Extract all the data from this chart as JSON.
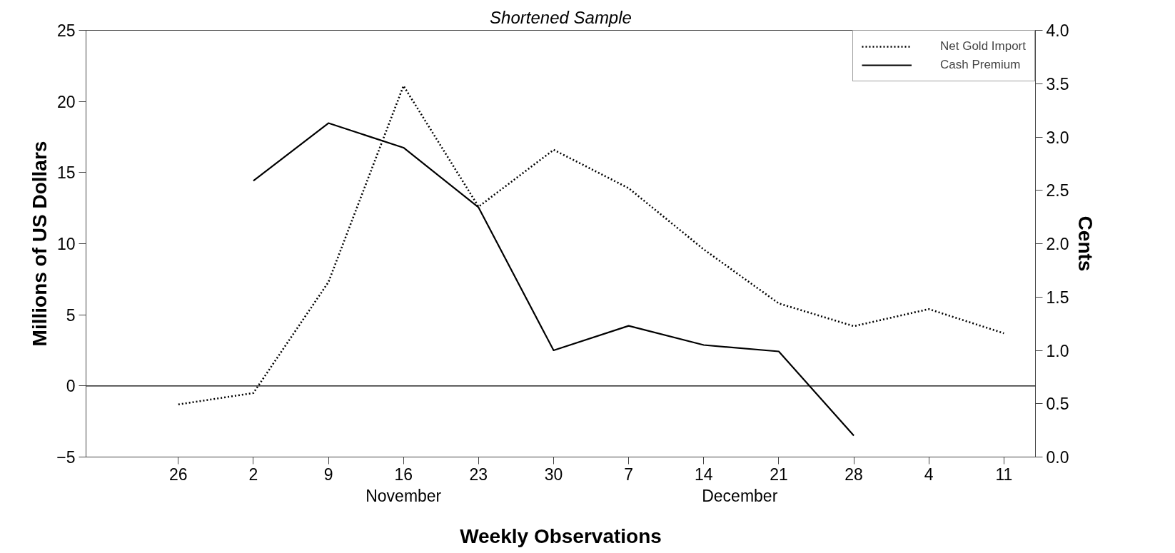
{
  "chart_data": {
    "type": "line",
    "title": "Shortened Sample",
    "xlabel": "Weekly Observations",
    "ylabel": "Millions of US Dollars",
    "y2label": "Cents",
    "categories": [
      "26",
      "2",
      "9",
      "16",
      "23",
      "30",
      "7",
      "14",
      "21",
      "28",
      "4",
      "11"
    ],
    "series": [
      {
        "name": "Net Gold Import",
        "color": "#000000",
        "line_style": "dotted",
        "values": [
          -1.3,
          -0.5,
          7.3,
          21.1,
          12.6,
          16.6,
          13.9,
          9.6,
          5.8,
          4.2,
          5.4,
          3.7
        ]
      },
      {
        "name": "Cash Premium",
        "color": "#000000",
        "line_style": "solid",
        "axis": "y2",
        "values": [
          null,
          2.59,
          3.13,
          2.9,
          2.34,
          1.0,
          1.23,
          1.05,
          0.99,
          0.2,
          null,
          null
        ]
      }
    ],
    "ylim": [
      -5,
      25
    ],
    "yticks": [
      -5,
      0,
      5,
      10,
      15,
      20,
      25
    ],
    "y2lim": [
      0,
      4
    ],
    "y2ticks": [
      {
        "value": 0,
        "label": "0.0"
      },
      {
        "value": 0.5,
        "label": "0.5"
      },
      {
        "value": 1,
        "label": "1.0"
      },
      {
        "value": 1.5,
        "label": "1.5"
      },
      {
        "value": 2,
        "label": "2.0"
      },
      {
        "value": 2.5,
        "label": "2.5"
      },
      {
        "value": 3,
        "label": "3.0"
      },
      {
        "value": 3.5,
        "label": "3.5"
      },
      {
        "value": 4,
        "label": "4.0"
      }
    ],
    "ref_lines": [
      {
        "axis": "y",
        "value": 0,
        "color": "#000000"
      }
    ],
    "annotations": [
      "November",
      "December"
    ],
    "legend": "top right",
    "grid": false,
    "marker": "none"
  }
}
